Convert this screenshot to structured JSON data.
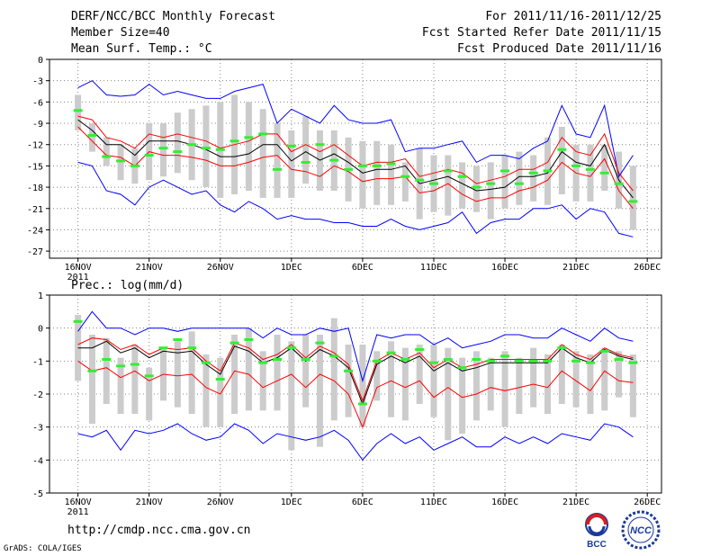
{
  "header": {
    "title": "DERF/NCC/BCC Monthly Forecast",
    "member_size": "Member Size=40",
    "period": "For 2011/11/16-2011/12/25",
    "fcst_started": "Fcst Started Refer Date 2011/11/15",
    "fcst_produced": "Fcst Produced Date 2011/11/16"
  },
  "footer": {
    "url": "http://cmdp.ncc.cma.gov.cn",
    "grads": "GrADS: COLA/IGES",
    "logo_bcc": "BCC",
    "logo_ncc": "NCC"
  },
  "colors": {
    "mean": "#000000",
    "spread": "#ff0000",
    "envelope": "#0000ff",
    "observed": "#33ee33",
    "boxes": "#cccccc",
    "grid": "#888888"
  },
  "chart_data": [
    {
      "type": "box+line",
      "title": "Mean Surf. Temp.: °C",
      "ylim": [
        -28,
        0
      ],
      "yticks": [
        0,
        -3,
        -6,
        -9,
        -12,
        -15,
        -18,
        -21,
        -24,
        -27
      ],
      "xticks": [
        {
          "day": 0,
          "label": "16NOV",
          "sub": "2011"
        },
        {
          "day": 5,
          "label": "21NOV"
        },
        {
          "day": 10,
          "label": "26NOV"
        },
        {
          "day": 15,
          "label": "1DEC"
        },
        {
          "day": 20,
          "label": "6DEC"
        },
        {
          "day": 25,
          "label": "11DEC"
        },
        {
          "day": 30,
          "label": "16DEC"
        },
        {
          "day": 35,
          "label": "21DEC"
        },
        {
          "day": 40,
          "label": "26DEC"
        }
      ],
      "days": [
        0,
        1,
        2,
        3,
        4,
        5,
        6,
        7,
        8,
        9,
        10,
        11,
        12,
        13,
        14,
        15,
        16,
        17,
        18,
        19,
        20,
        21,
        22,
        23,
        24,
        25,
        26,
        27,
        28,
        29,
        30,
        31,
        32,
        33,
        34,
        35,
        36,
        37,
        38,
        39
      ],
      "mean": [
        -8.5,
        -10,
        -12,
        -12,
        -13.5,
        -11.5,
        -11.5,
        -11.5,
        -12,
        -12.7,
        -13.7,
        -13.7,
        -13.3,
        -12,
        -12,
        -14.3,
        -13,
        -14.2,
        -13.3,
        -14.5,
        -16,
        -15.5,
        -15.5,
        -15,
        -17.5,
        -17,
        -16.5,
        -17.5,
        -18.5,
        -18.3,
        -18,
        -16.5,
        -16.5,
        -16,
        -13,
        -14.5,
        -15,
        -12,
        -17,
        -19.5
      ],
      "upper": [
        -8,
        -8.5,
        -11,
        -11.5,
        -12.5,
        -10.5,
        -11,
        -10.5,
        -11,
        -11.5,
        -12.5,
        -12,
        -11.5,
        -10.5,
        -10.5,
        -13,
        -12,
        -13,
        -12,
        -13.5,
        -15,
        -14.5,
        -14.5,
        -14,
        -16.5,
        -16,
        -15.5,
        -16,
        -17.5,
        -17,
        -16.5,
        -15.5,
        -15.5,
        -14.5,
        -11,
        -13,
        -13.5,
        -10.5,
        -16,
        -18.5
      ],
      "lower": [
        -9.5,
        -11.5,
        -13.5,
        -13.8,
        -15,
        -13,
        -13.5,
        -13.5,
        -13.8,
        -14.2,
        -15,
        -15,
        -14.5,
        -13.8,
        -13.5,
        -15.5,
        -15.8,
        -16.5,
        -15,
        -15.8,
        -17.2,
        -16.8,
        -16.8,
        -16.5,
        -18.8,
        -18.5,
        -17.5,
        -19,
        -20,
        -19.5,
        -19.5,
        -18.5,
        -18,
        -17,
        -14.5,
        -16,
        -16.5,
        -14,
        -18.5,
        -21
      ],
      "max": [
        -4,
        -3,
        -5,
        -5.2,
        -5,
        -3.5,
        -5,
        -4.5,
        -5,
        -5.5,
        -5.5,
        -4.5,
        -4,
        -3.5,
        -9,
        -7,
        -8,
        -9,
        -6.5,
        -8.5,
        -9,
        -9,
        -8.5,
        -13,
        -12.5,
        -12.5,
        -12,
        -11.5,
        -14.5,
        -13.5,
        -13.5,
        -14,
        -12.5,
        -11.5,
        -6.5,
        -10.5,
        -11,
        -6.5,
        -16.5,
        -13.5
      ],
      "min": [
        -14.5,
        -15,
        -18.5,
        -19,
        -20.5,
        -18,
        -17,
        -18,
        -19,
        -18.5,
        -20.5,
        -21.5,
        -20,
        -21,
        -22.5,
        -22,
        -22.5,
        -22.5,
        -23,
        -23,
        -23.5,
        -23.5,
        -22.5,
        -23.5,
        -24,
        -23.5,
        -23,
        -21.5,
        -24.5,
        -23,
        -22.5,
        -22.5,
        -21,
        -21,
        -20.5,
        -22.5,
        -21,
        -21.5,
        -24.5,
        -25
      ],
      "box_high": [
        -5,
        -9,
        -11,
        -12,
        -12.5,
        -9,
        -9,
        -7.5,
        -7,
        -6.5,
        -6,
        -5,
        -6,
        -7,
        -9,
        -10,
        -8,
        -10,
        -10,
        -11,
        -11.5,
        -11.5,
        -12,
        -14.5,
        -12.5,
        -13.5,
        -13.5,
        -14.5,
        -15,
        -14.5,
        -13.5,
        -13,
        -13.5,
        -11,
        -9.5,
        -12,
        -12,
        -12,
        -13,
        -15
      ],
      "box_low": [
        -10,
        -13,
        -15,
        -17,
        -17.5,
        -17,
        -16.5,
        -16,
        -17,
        -18,
        -19.5,
        -19,
        -18.5,
        -19.5,
        -19.5,
        -19.5,
        -17.5,
        -18.5,
        -18.5,
        -20,
        -21,
        -20.5,
        -20.5,
        -20,
        -22.5,
        -21.5,
        -22,
        -21,
        -21.5,
        -22.5,
        -21,
        -20.5,
        -20,
        -20.5,
        -19,
        -20,
        -20,
        -18.5,
        -21,
        -24
      ],
      "observed": [
        -7.2,
        -10.7,
        -13.7,
        -14.3,
        -15,
        -13.5,
        -12.5,
        -13,
        -12,
        -12.5,
        -12.7,
        -11.5,
        -11,
        -10.5,
        -15.5,
        -12.2,
        -14.5,
        -12,
        -14.2,
        -15.5,
        -15,
        -15,
        -14.7,
        -16.5,
        -17,
        -17.5,
        -15.7,
        -16.5,
        -18,
        -17.5,
        -15.7,
        -17.5,
        -16,
        -15.7,
        -12.7,
        -15,
        -15.5,
        -16,
        -17.5,
        -20
      ]
    },
    {
      "type": "box+line",
      "title": "Prec.: log(mm/d)",
      "ylim": [
        -5,
        1
      ],
      "yticks": [
        1,
        0,
        -1,
        -2,
        -3,
        -4,
        -5
      ],
      "xticks": [
        {
          "day": 0,
          "label": "16NOV",
          "sub": "2011"
        },
        {
          "day": 5,
          "label": "21NOV"
        },
        {
          "day": 10,
          "label": "26NOV"
        },
        {
          "day": 15,
          "label": "1DEC"
        },
        {
          "day": 20,
          "label": "6DEC"
        },
        {
          "day": 25,
          "label": "11DEC"
        },
        {
          "day": 30,
          "label": "16DEC"
        },
        {
          "day": 35,
          "label": "21DEC"
        },
        {
          "day": 40,
          "label": "26DEC"
        }
      ],
      "days": [
        0,
        1,
        2,
        3,
        4,
        5,
        6,
        7,
        8,
        9,
        10,
        11,
        12,
        13,
        14,
        15,
        16,
        17,
        18,
        19,
        20,
        21,
        22,
        23,
        24,
        25,
        26,
        27,
        28,
        29,
        30,
        31,
        32,
        33,
        34,
        35,
        36,
        37,
        38,
        39
      ],
      "mean": [
        -0.6,
        -0.6,
        -0.4,
        -0.75,
        -0.6,
        -0.9,
        -0.7,
        -0.75,
        -0.7,
        -1.1,
        -1.4,
        -0.55,
        -0.7,
        -1.05,
        -0.9,
        -0.6,
        -1,
        -0.65,
        -0.85,
        -1.2,
        -2.3,
        -1.1,
        -0.85,
        -1.05,
        -0.85,
        -1.3,
        -1.05,
        -1.3,
        -1.2,
        -1.05,
        -1.05,
        -1.05,
        -1.05,
        -1.05,
        -0.6,
        -0.9,
        -1.05,
        -0.65,
        -0.85,
        -0.95
      ],
      "upper": [
        -0.5,
        -0.3,
        -0.35,
        -0.65,
        -0.5,
        -0.8,
        -0.6,
        -0.65,
        -0.6,
        -1,
        -1.3,
        -0.45,
        -0.6,
        -0.95,
        -0.8,
        -0.5,
        -0.9,
        -0.55,
        -0.75,
        -1.1,
        -2.2,
        -1,
        -0.75,
        -0.95,
        -0.75,
        -1.2,
        -0.95,
        -1.2,
        -1.1,
        -0.95,
        -0.95,
        -0.95,
        -0.95,
        -0.95,
        -0.5,
        -0.8,
        -0.95,
        -0.6,
        -0.8,
        -0.9
      ],
      "lower": [
        -1,
        -1.3,
        -1.2,
        -1.5,
        -1.3,
        -1.6,
        -1.4,
        -1.45,
        -1.4,
        -1.8,
        -2,
        -1.3,
        -1.4,
        -1.8,
        -1.6,
        -1.4,
        -1.8,
        -1.4,
        -1.6,
        -2,
        -3,
        -1.8,
        -1.6,
        -1.8,
        -1.6,
        -2.1,
        -1.8,
        -2.1,
        -2,
        -1.8,
        -1.9,
        -1.8,
        -1.7,
        -1.8,
        -1.3,
        -1.6,
        -1.9,
        -1.3,
        -1.6,
        -1.65
      ],
      "max": [
        -0.1,
        0.5,
        0,
        0,
        -0.2,
        0,
        0,
        -0.1,
        0,
        0,
        0,
        0,
        0,
        -0.3,
        0,
        -0.2,
        -0.2,
        0,
        -0.1,
        0,
        -1.6,
        -0.2,
        -0.3,
        -0.2,
        -0.2,
        -0.5,
        -0.3,
        -0.6,
        -0.5,
        -0.4,
        -0.2,
        -0.2,
        -0.3,
        -0.3,
        0,
        -0.2,
        -0.4,
        0,
        -0.3,
        -0.4
      ],
      "min": [
        -3.2,
        -3.3,
        -3.1,
        -3.7,
        -3.1,
        -3.2,
        -3.1,
        -2.9,
        -3.2,
        -3.4,
        -3.3,
        -2.9,
        -3.1,
        -3.5,
        -3.2,
        -3.3,
        -3.4,
        -3.3,
        -3.1,
        -3.4,
        -4,
        -3.5,
        -3.2,
        -3.5,
        -3.3,
        -3.7,
        -3.5,
        -3.3,
        -3.6,
        -3.6,
        -3.3,
        -3.5,
        -3.3,
        -3.5,
        -3.2,
        -3.3,
        -3.4,
        -2.9,
        -3,
        -3.3
      ],
      "box_high": [
        0.4,
        -0.2,
        -0.3,
        -0.9,
        -0.5,
        -1.2,
        -0.6,
        -0.4,
        -0.1,
        -0.8,
        -0.9,
        -0.2,
        0,
        -0.7,
        -0.2,
        -0.4,
        -0.2,
        -0.2,
        0.3,
        -0.5,
        -0.5,
        -0.7,
        -0.4,
        -0.6,
        -0.5,
        -0.5,
        -0.6,
        -0.9,
        -0.7,
        -0.9,
        -0.7,
        -0.9,
        -0.6,
        -0.8,
        -0.5,
        -0.7,
        -0.8,
        -0.6,
        -0.7,
        -0.8
      ],
      "box_low": [
        -1.6,
        -2.9,
        -2.3,
        -2.6,
        -2.6,
        -2.8,
        -2.2,
        -2.4,
        -2.6,
        -3,
        -3,
        -2.6,
        -2.5,
        -2.5,
        -2.5,
        -3.7,
        -2.4,
        -3.6,
        -2.8,
        -2.7,
        -3,
        -2.2,
        -2.7,
        -2.8,
        -2.3,
        -2.7,
        -3.4,
        -3.2,
        -2.8,
        -2.5,
        -3,
        -2.6,
        -2.4,
        -2.6,
        -2.3,
        -2.4,
        -2.6,
        -2.5,
        -2.1,
        -2.7
      ],
      "observed": [
        0.2,
        -1.3,
        -0.95,
        -1.15,
        -1.1,
        -1.45,
        -0.6,
        -0.35,
        -0.6,
        -1.05,
        -1.55,
        -0.45,
        -0.35,
        -1.05,
        -0.95,
        -0.6,
        -0.95,
        -0.45,
        -0.85,
        -1.3,
        -2.3,
        -1,
        -0.75,
        -0.95,
        -0.65,
        -1.05,
        -0.95,
        -1.2,
        -0.95,
        -1,
        -0.85,
        -1,
        -1,
        -1,
        -0.6,
        -1,
        -1.05,
        -0.7,
        -0.95,
        -1.05
      ]
    }
  ]
}
